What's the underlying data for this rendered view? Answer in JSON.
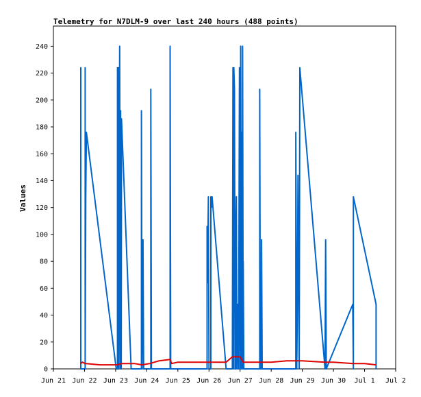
{
  "chart_data": {
    "type": "line",
    "title": "Telemetry for N7DLM-9 over last 240 hours (488 points)",
    "xlabel": "",
    "ylabel": "Values",
    "x_tick_labels": [
      "Jun 21",
      "Jun 22",
      "Jun 23",
      "Jun 24",
      "Jun 25",
      "Jun 26",
      "Jun 27",
      "Jun 28",
      "Jun 29",
      "Jun 30",
      "Jul 1",
      "Jul 2"
    ],
    "xlim": [
      0,
      11
    ],
    "ylim": [
      0,
      255
    ],
    "yticks": [
      0,
      20,
      40,
      60,
      80,
      100,
      120,
      140,
      160,
      180,
      200,
      220,
      240
    ],
    "grid": false,
    "series": [
      {
        "color": "#0066cc",
        "points": [
          [
            0.88,
            0
          ],
          [
            0.88,
            224
          ],
          [
            0.88,
            0
          ],
          [
            1.02,
            0
          ],
          [
            1.02,
            224
          ],
          [
            1.02,
            0
          ],
          [
            1.04,
            128
          ],
          [
            1.06,
            176
          ],
          [
            2.02,
            0
          ],
          [
            2.06,
            0
          ],
          [
            2.06,
            224
          ],
          [
            2.08,
            0
          ],
          [
            2.09,
            224
          ],
          [
            2.1,
            0
          ],
          [
            2.13,
            240
          ],
          [
            2.15,
            0
          ],
          [
            2.16,
            192
          ],
          [
            2.18,
            0
          ],
          [
            2.19,
            186
          ],
          [
            2.5,
            0
          ],
          [
            2.5,
            0
          ],
          [
            2.83,
            0
          ],
          [
            2.83,
            192
          ],
          [
            2.85,
            0
          ],
          [
            2.88,
            96
          ],
          [
            2.9,
            0
          ],
          [
            3.13,
            0
          ],
          [
            3.13,
            208
          ],
          [
            3.15,
            0
          ],
          [
            3.15,
            0
          ],
          [
            3.75,
            0
          ],
          [
            3.75,
            240
          ],
          [
            3.77,
            0
          ],
          [
            4.94,
            0
          ],
          [
            4.94,
            106
          ],
          [
            4.95,
            64
          ],
          [
            4.98,
            128
          ],
          [
            5.0,
            0
          ],
          [
            5.06,
            0
          ],
          [
            5.06,
            128
          ],
          [
            5.08,
            120
          ],
          [
            5.1,
            128
          ],
          [
            5.55,
            0
          ],
          [
            5.75,
            0
          ],
          [
            5.77,
            224
          ],
          [
            5.79,
            0
          ],
          [
            5.8,
            224
          ],
          [
            5.82,
            208
          ],
          [
            5.84,
            0
          ],
          [
            5.86,
            0
          ],
          [
            5.86,
            92
          ],
          [
            5.88,
            128
          ],
          [
            5.9,
            0
          ],
          [
            5.93,
            48
          ],
          [
            5.95,
            0
          ],
          [
            5.98,
            224
          ],
          [
            6.0,
            0
          ],
          [
            6.02,
            240
          ],
          [
            6.04,
            0
          ],
          [
            6.05,
            176
          ],
          [
            6.07,
            0
          ],
          [
            6.08,
            240
          ],
          [
            6.1,
            0
          ],
          [
            6.1,
            80
          ],
          [
            6.12,
            0
          ],
          [
            6.63,
            0
          ],
          [
            6.63,
            208
          ],
          [
            6.65,
            0
          ],
          [
            6.69,
            0
          ],
          [
            6.69,
            96
          ],
          [
            6.71,
            0
          ],
          [
            7.79,
            0
          ],
          [
            7.79,
            176
          ],
          [
            7.82,
            0
          ],
          [
            7.84,
            44
          ],
          [
            7.86,
            144
          ],
          [
            7.9,
            0
          ],
          [
            7.92,
            224
          ],
          [
            8.73,
            0
          ],
          [
            8.75,
            96
          ],
          [
            8.77,
            0
          ],
          [
            9.62,
            48
          ],
          [
            9.64,
            0
          ],
          [
            9.64,
            128
          ],
          [
            10.37,
            48
          ],
          [
            10.37,
            0
          ]
        ]
      },
      {
        "color": "#dd0000",
        "points": [
          [
            0.88,
            4
          ],
          [
            0.93,
            5
          ],
          [
            1.02,
            4
          ],
          [
            1.5,
            3
          ],
          [
            2.05,
            3
          ],
          [
            2.2,
            4
          ],
          [
            2.6,
            4
          ],
          [
            2.85,
            3
          ],
          [
            3.1,
            4
          ],
          [
            3.4,
            6
          ],
          [
            3.75,
            7
          ],
          [
            3.8,
            4
          ],
          [
            4.0,
            5
          ],
          [
            5.0,
            5
          ],
          [
            5.55,
            5
          ],
          [
            5.75,
            9
          ],
          [
            6.0,
            9
          ],
          [
            6.1,
            5
          ],
          [
            6.6,
            5
          ],
          [
            7.0,
            5
          ],
          [
            7.5,
            6
          ],
          [
            8.0,
            6
          ],
          [
            8.73,
            5
          ],
          [
            9.0,
            5
          ],
          [
            9.62,
            4
          ],
          [
            10.0,
            4
          ],
          [
            10.37,
            3
          ]
        ]
      }
    ]
  }
}
